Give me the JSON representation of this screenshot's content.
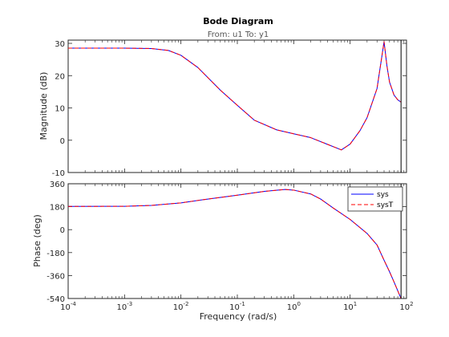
{
  "figure": {
    "title": "Bode Diagram",
    "subtitle": "From: u1  To: y1",
    "xlabel": "Frequency  (rad/s)"
  },
  "chart_data": {
    "type": "line",
    "title": "Bode Diagram",
    "subtitle": "From: u1  To: y1",
    "x_scale": "log",
    "xlabel": "Frequency  (rad/s)",
    "xlim": [
      0.0001,
      100
    ],
    "xticks": [
      0.0001,
      0.001,
      0.01,
      0.1,
      1,
      10,
      100
    ],
    "xtick_labels": [
      "10-4",
      "10-3",
      "10-2",
      "10-1",
      "100",
      "101",
      "102"
    ],
    "vline_x": 80,
    "legend": {
      "placement": "top-right (phase plot)",
      "entries": [
        "sys",
        "sysT"
      ]
    },
    "colors": {
      "sys": "#0000ff",
      "sysT": "#ff0000",
      "vline": "#000000"
    },
    "panels": [
      {
        "name": "magnitude",
        "ylabel": "Magnitude (dB)",
        "ylim": [
          -10,
          31
        ],
        "yticks": [
          -10,
          0,
          10,
          20,
          30
        ],
        "ytick_labels": [
          "-10",
          "0",
          "10",
          "20",
          "30"
        ],
        "series": [
          {
            "name": "sys",
            "x": [
              0.0001,
              0.001,
              0.003,
              0.006,
              0.01,
              0.02,
              0.05,
              0.1,
              0.2,
              0.5,
              1,
              2,
              4,
              7,
              10,
              15,
              20,
              30,
              40,
              45,
              50,
              60,
              70,
              80
            ],
            "y": [
              28.5,
              28.5,
              28.4,
              27.8,
              26.3,
              22.5,
              15.5,
              10.8,
              6.2,
              3.2,
              2.0,
              0.8,
              -1.3,
              -3.0,
              -1.2,
              3.0,
              7.0,
              16.0,
              30.5,
              23.0,
              18.0,
              14.0,
              12.5,
              11.8
            ]
          },
          {
            "name": "sysT",
            "x": [
              0.0001,
              0.001,
              0.003,
              0.006,
              0.01,
              0.02,
              0.05,
              0.1,
              0.2,
              0.5,
              1,
              2,
              4,
              7,
              10,
              15,
              20,
              30,
              40,
              45,
              50,
              60,
              70,
              80
            ],
            "y": [
              28.5,
              28.5,
              28.4,
              27.8,
              26.3,
              22.5,
              15.5,
              10.8,
              6.2,
              3.2,
              2.0,
              0.8,
              -1.3,
              -3.0,
              -1.2,
              3.0,
              7.0,
              16.0,
              30.5,
              23.0,
              18.0,
              14.0,
              12.5,
              11.8
            ]
          }
        ]
      },
      {
        "name": "phase",
        "ylabel": "Phase (deg)",
        "ylim": [
          -540,
          360
        ],
        "yticks": [
          -540,
          -360,
          -180,
          0,
          180,
          360
        ],
        "ytick_labels": [
          "-540",
          "-360",
          "-180",
          "0",
          "180",
          "360"
        ],
        "series": [
          {
            "name": "sys",
            "x": [
              0.0001,
              0.001,
              0.003,
              0.01,
              0.03,
              0.1,
              0.3,
              0.7,
              1,
              2,
              3,
              5,
              10,
              20,
              30,
              40,
              50,
              60,
              70,
              80
            ],
            "y": [
              182,
              183,
              190,
              210,
              240,
              270,
              300,
              315,
              310,
              280,
              240,
              170,
              80,
              -30,
              -120,
              -240,
              -330,
              -410,
              -480,
              -540
            ]
          },
          {
            "name": "sysT",
            "x": [
              0.0001,
              0.001,
              0.003,
              0.01,
              0.03,
              0.1,
              0.3,
              0.7,
              1,
              2,
              3,
              5,
              10,
              20,
              30,
              40,
              50,
              60,
              70,
              80
            ],
            "y": [
              182,
              183,
              190,
              210,
              240,
              270,
              300,
              315,
              310,
              280,
              240,
              170,
              80,
              -30,
              -120,
              -240,
              -330,
              -410,
              -480,
              -540
            ]
          }
        ]
      }
    ]
  }
}
